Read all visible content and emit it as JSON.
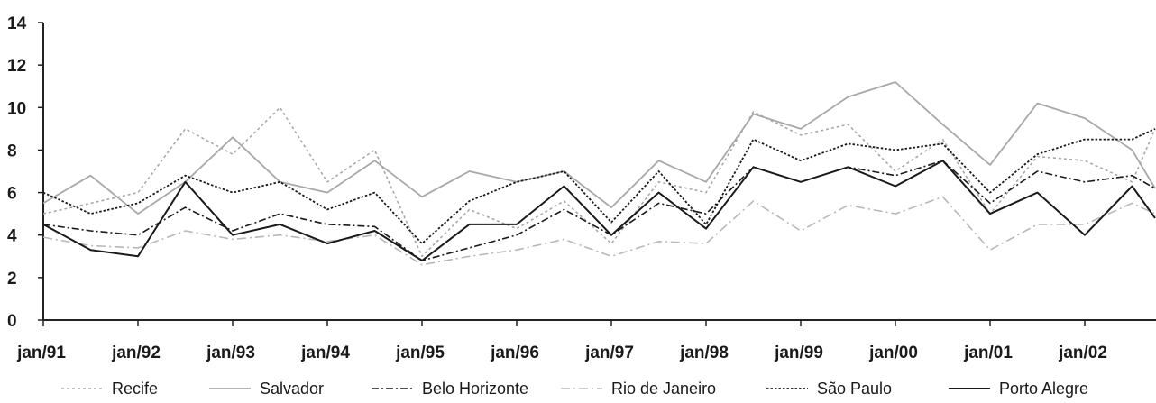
{
  "chart_data": {
    "type": "line",
    "title": "",
    "xlabel": "",
    "ylabel": "",
    "ylim": [
      0,
      14
    ],
    "yticks": [
      0,
      2,
      4,
      6,
      8,
      10,
      12,
      14
    ],
    "xlim": [
      "jan/91",
      "dez/02"
    ],
    "xtick_labels": [
      "jan/91",
      "jan/92",
      "jan/93",
      "jan/94",
      "jan/95",
      "jan/96",
      "jan/97",
      "jan/98",
      "jan/99",
      "jan/00",
      "jan/01",
      "jan/02"
    ],
    "grid": false,
    "legend_position": "bottom",
    "x": [
      "jan/91",
      "jul/91",
      "jan/92",
      "jul/92",
      "jan/93",
      "jul/93",
      "jan/94",
      "jul/94",
      "jan/95",
      "jul/95",
      "jan/96",
      "jul/96",
      "jan/97",
      "jul/97",
      "jan/98",
      "jul/98",
      "jan/99",
      "jul/99",
      "jan/00",
      "jul/00",
      "jan/01",
      "jul/01",
      "jan/02",
      "jul/02",
      "dez/02"
    ],
    "series": [
      {
        "name": "Recife",
        "color": "#a8a8a8",
        "dash": "3 3",
        "width": 1.6,
        "values": [
          5.0,
          5.5,
          6.0,
          9.0,
          7.8,
          10.0,
          6.5,
          8.0,
          3.0,
          5.2,
          4.3,
          5.6,
          3.6,
          6.5,
          6.0,
          9.8,
          8.7,
          9.2,
          7.0,
          8.5,
          5.0,
          7.7,
          7.5,
          6.5,
          9.0
        ]
      },
      {
        "name": "Salvador",
        "color": "#a8a8a8",
        "dash": "",
        "width": 1.8,
        "values": [
          5.5,
          6.8,
          5.0,
          6.5,
          8.6,
          6.5,
          6.0,
          7.5,
          5.8,
          7.0,
          6.5,
          7.0,
          5.3,
          7.5,
          6.5,
          9.7,
          9.0,
          10.5,
          11.2,
          9.2,
          7.3,
          10.2,
          9.5,
          8.0,
          6.2
        ]
      },
      {
        "name": "Belo Horizonte",
        "color": "#1a1a1a",
        "dash": "8 3 2 3",
        "width": 1.6,
        "values": [
          4.5,
          4.2,
          4.0,
          5.3,
          4.2,
          5.0,
          4.5,
          4.4,
          2.8,
          3.4,
          4.0,
          5.2,
          4.0,
          5.5,
          5.0,
          7.2,
          6.5,
          7.2,
          6.8,
          7.5,
          5.5,
          7.0,
          6.5,
          6.8,
          6.2
        ]
      },
      {
        "name": "Rio de Janeiro",
        "color": "#b8b8b8",
        "dash": "10 4 2 4",
        "width": 1.6,
        "values": [
          3.9,
          3.5,
          3.4,
          4.2,
          3.8,
          4.0,
          3.7,
          4.0,
          2.6,
          3.0,
          3.3,
          3.8,
          3.0,
          3.7,
          3.6,
          5.6,
          4.2,
          5.4,
          5.0,
          5.8,
          3.3,
          4.5,
          4.5,
          5.5,
          5.0
        ]
      },
      {
        "name": "São Paulo",
        "color": "#1a1a1a",
        "dash": "2.5 2",
        "width": 1.8,
        "values": [
          6.0,
          5.0,
          5.5,
          6.8,
          6.0,
          6.5,
          5.2,
          6.0,
          3.6,
          5.6,
          6.5,
          7.0,
          4.6,
          7.0,
          4.5,
          8.5,
          7.5,
          8.3,
          8.0,
          8.3,
          6.0,
          7.8,
          8.5,
          8.5,
          9.0
        ]
      },
      {
        "name": "Porto Alegre",
        "color": "#1a1a1a",
        "dash": "",
        "width": 2.0,
        "values": [
          4.5,
          3.3,
          3.0,
          6.5,
          4.0,
          4.5,
          3.6,
          4.2,
          2.8,
          4.5,
          4.5,
          6.3,
          4.0,
          6.0,
          4.3,
          7.2,
          6.5,
          7.2,
          6.3,
          7.5,
          5.0,
          6.0,
          4.0,
          6.3,
          4.8
        ]
      }
    ]
  }
}
